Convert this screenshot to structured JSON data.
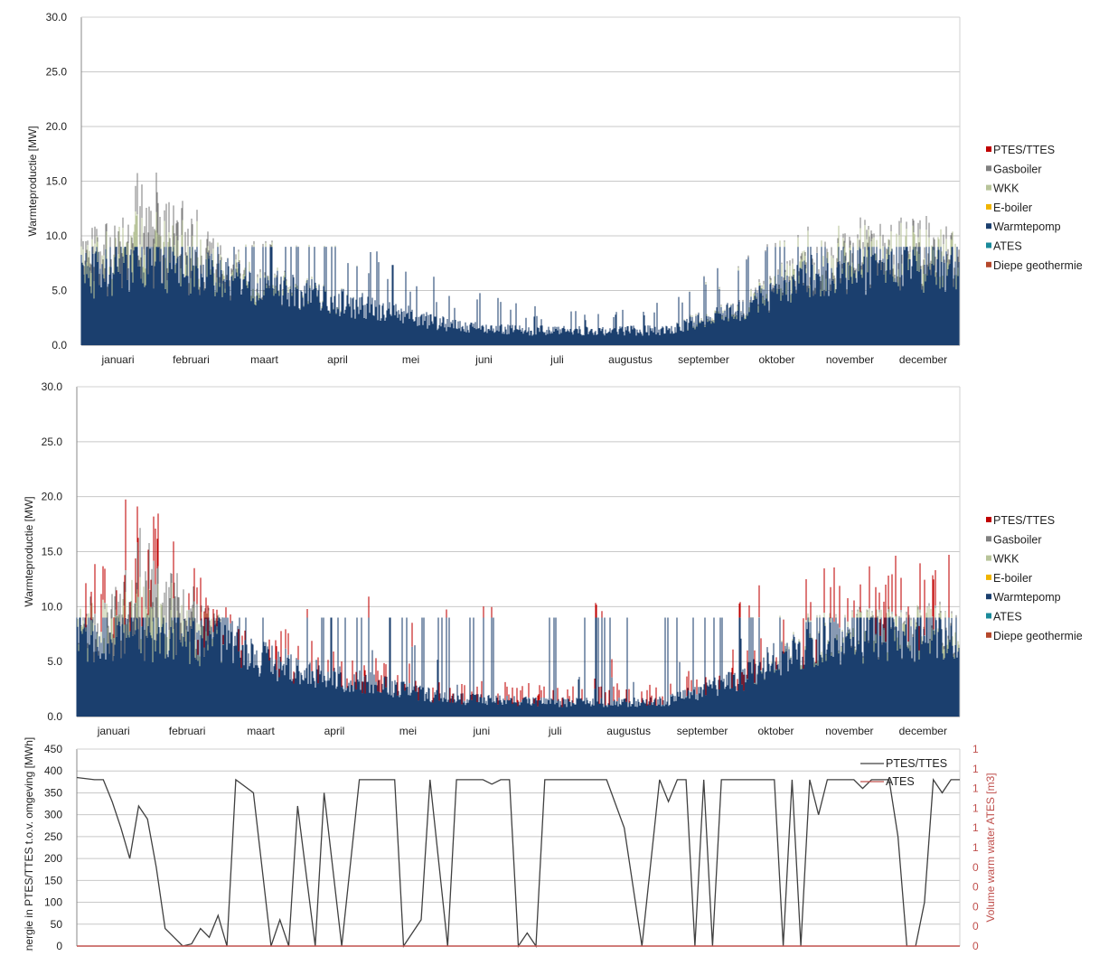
{
  "chart_data": [
    {
      "type": "area",
      "stacked": true,
      "xlabel": "",
      "ylabel": "Warmteproductie [MW]",
      "ylim": [
        0,
        30
      ],
      "yticks": [
        "0.0",
        "5.0",
        "10.0",
        "15.0",
        "20.0",
        "25.0",
        "30.0"
      ],
      "categories": [
        "januari",
        "februari",
        "maart",
        "april",
        "mei",
        "juni",
        "juli",
        "augustus",
        "september",
        "oktober",
        "november",
        "december"
      ],
      "grid": true,
      "legend_position": "right",
      "colors": {
        "PTES/TTES": "#c00000",
        "Gasboiler": "#808080",
        "WKK": "#b8c49a",
        "E-boiler": "#f0b400",
        "Warmtepomp": "#1b3f6e",
        "ATES": "#1a8a9a",
        "Diepe geothermie": "#b5472b"
      },
      "series": [
        {
          "name": "PTES/TTES",
          "values": [
            0,
            0,
            0,
            0,
            0,
            0,
            0,
            0,
            0,
            0,
            0,
            0
          ]
        },
        {
          "name": "Gasboiler",
          "values": [
            0.6,
            3.5,
            0.4,
            0,
            0,
            0,
            0,
            0,
            0,
            0.1,
            0.5,
            0.9
          ]
        },
        {
          "name": "WKK",
          "values": [
            1.2,
            3,
            0.8,
            0.2,
            0,
            0,
            0,
            0,
            0,
            0.3,
            1.2,
            1.5
          ]
        },
        {
          "name": "E-boiler",
          "values": [
            0,
            0,
            0,
            0,
            0,
            0,
            0,
            0,
            0,
            0,
            0,
            0
          ]
        },
        {
          "name": "Warmtepomp",
          "values": [
            7.5,
            9,
            7,
            5.5,
            4,
            2.2,
            1.6,
            1.5,
            1.6,
            4,
            7.5,
            8.5
          ]
        },
        {
          "name": "ATES",
          "values": [
            0,
            0,
            0,
            0,
            0,
            0,
            0,
            0,
            0,
            0,
            0,
            0
          ]
        },
        {
          "name": "Diepe geothermie",
          "values": [
            0,
            0,
            0,
            0,
            0,
            0,
            0,
            0,
            0,
            0,
            0,
            0
          ]
        }
      ]
    },
    {
      "type": "area",
      "stacked": true,
      "xlabel": "",
      "ylabel": "Warmteproductie [MW]",
      "ylim": [
        0,
        30
      ],
      "yticks": [
        "0.0",
        "5.0",
        "10.0",
        "15.0",
        "20.0",
        "25.0",
        "30.0"
      ],
      "categories": [
        "januari",
        "februari",
        "maart",
        "april",
        "mei",
        "juni",
        "juli",
        "augustus",
        "september",
        "oktober",
        "november",
        "december"
      ],
      "grid": true,
      "legend_position": "right",
      "colors": {
        "PTES/TTES": "#c00000",
        "Gasboiler": "#808080",
        "WKK": "#b8c49a",
        "E-boiler": "#f0b400",
        "Warmtepomp": "#1b3f6e",
        "ATES": "#1a8a9a",
        "Diepe geothermie": "#b5472b"
      },
      "series": [
        {
          "name": "PTES/TTES",
          "values": [
            1,
            2,
            0.5,
            0.8,
            0.6,
            0.5,
            0.4,
            0.4,
            0.5,
            0.6,
            1.5,
            1.5
          ]
        },
        {
          "name": "Gasboiler",
          "values": [
            0,
            3.6,
            0,
            0,
            0,
            0,
            0,
            0,
            0,
            0,
            0,
            0.2
          ]
        },
        {
          "name": "WKK",
          "values": [
            0.5,
            3,
            0,
            0,
            0,
            0,
            0,
            0,
            0,
            0,
            0.3,
            0.8
          ]
        },
        {
          "name": "E-boiler",
          "values": [
            0,
            0,
            0,
            0,
            0,
            0,
            0,
            0,
            0,
            0,
            0,
            0
          ]
        },
        {
          "name": "Warmtepomp",
          "values": [
            9,
            9,
            8,
            5,
            3.5,
            2,
            1.6,
            1.5,
            1.6,
            4,
            8,
            9
          ]
        },
        {
          "name": "ATES",
          "values": [
            0,
            0,
            0,
            0,
            0,
            0,
            0,
            0,
            0,
            0,
            0,
            0
          ]
        },
        {
          "name": "Diepe geothermie",
          "values": [
            0,
            0,
            0,
            0,
            0,
            0,
            0,
            0,
            0,
            0,
            0,
            0
          ]
        }
      ]
    },
    {
      "type": "line",
      "xlabel": "",
      "ylabel": "Energie in PTES/TTES t.o.v. omgeving [MWh]",
      "ylabel2": "Volume warm water ATES [m3]",
      "ylim": [
        0,
        450
      ],
      "yticks": [
        "0",
        "50",
        "100",
        "150",
        "200",
        "250",
        "300",
        "350",
        "400",
        "450"
      ],
      "y2ticks": [
        "0",
        "0",
        "0",
        "0",
        "0",
        "1",
        "1",
        "1",
        "1",
        "1",
        "1"
      ],
      "grid": true,
      "legend_position": "top-right",
      "colors": {
        "PTES/TTES": "#404040",
        "ATES": "#c0504d"
      },
      "x": [
        0,
        0.02,
        0.03,
        0.04,
        0.05,
        0.06,
        0.07,
        0.08,
        0.09,
        0.1,
        0.11,
        0.12,
        0.13,
        0.14,
        0.15,
        0.16,
        0.17,
        0.18,
        0.2,
        0.22,
        0.23,
        0.24,
        0.25,
        0.27,
        0.28,
        0.3,
        0.32,
        0.33,
        0.35,
        0.36,
        0.37,
        0.39,
        0.4,
        0.42,
        0.43,
        0.44,
        0.45,
        0.46,
        0.47,
        0.48,
        0.49,
        0.5,
        0.51,
        0.52,
        0.53,
        0.54,
        0.55,
        0.56,
        0.57,
        0.58,
        0.6,
        0.62,
        0.64,
        0.66,
        0.67,
        0.68,
        0.69,
        0.7,
        0.71,
        0.72,
        0.73,
        0.74,
        0.75,
        0.76,
        0.77,
        0.79,
        0.8,
        0.81,
        0.82,
        0.83,
        0.84,
        0.85,
        0.86,
        0.87,
        0.88,
        0.89,
        0.9,
        0.91,
        0.92,
        0.93,
        0.94,
        0.95,
        0.96,
        0.97,
        0.98,
        0.99,
        1.0
      ],
      "series": [
        {
          "name": "PTES/TTES",
          "values": [
            385,
            380,
            380,
            330,
            270,
            200,
            320,
            290,
            180,
            40,
            20,
            0,
            5,
            40,
            20,
            70,
            0,
            380,
            350,
            0,
            60,
            0,
            320,
            0,
            350,
            0,
            380,
            380,
            380,
            380,
            0,
            60,
            380,
            0,
            380,
            380,
            380,
            380,
            370,
            380,
            380,
            0,
            30,
            0,
            380,
            380,
            380,
            380,
            380,
            380,
            380,
            270,
            0,
            380,
            330,
            380,
            380,
            0,
            380,
            0,
            380,
            380,
            380,
            380,
            380,
            380,
            0,
            380,
            0,
            380,
            300,
            380,
            380,
            380,
            380,
            360,
            380,
            380,
            380,
            250,
            0,
            0,
            100,
            380,
            350,
            380,
            380
          ]
        },
        {
          "name": "ATES",
          "values": [
            0,
            0,
            0,
            0,
            0,
            0,
            0,
            0,
            0,
            0,
            0,
            0,
            0,
            0,
            0,
            0,
            0,
            0,
            0,
            0,
            0,
            0,
            0,
            0,
            0,
            0,
            0,
            0,
            0,
            0,
            0,
            0,
            0,
            0,
            0,
            0,
            0,
            0,
            0,
            0,
            0,
            0,
            0,
            0,
            0,
            0,
            0,
            0,
            0,
            0,
            0,
            0,
            0,
            0,
            0,
            0,
            0,
            0,
            0,
            0,
            0,
            0,
            0,
            0,
            0,
            0,
            0,
            0,
            0,
            0,
            0,
            0,
            0,
            0,
            0,
            0,
            0,
            0,
            0,
            0,
            0,
            0,
            0,
            0,
            0,
            0,
            0
          ]
        }
      ]
    }
  ]
}
